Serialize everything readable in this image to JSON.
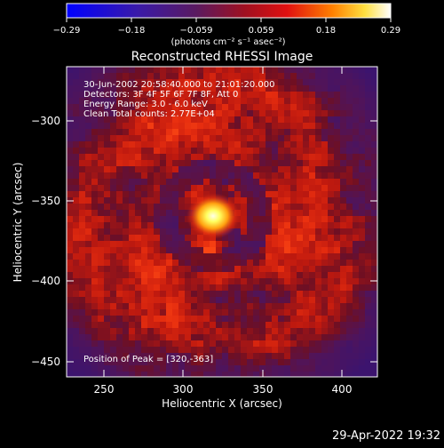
{
  "colorbar": {
    "ticks": [
      "−0.29",
      "−0.18",
      "−0.059",
      "0.059",
      "0.18",
      "0.29"
    ],
    "units": "(photons cm⁻² s⁻¹ asec⁻²)",
    "min": -0.29,
    "max": 0.29
  },
  "title": "Reconstructed RHESSI Image",
  "info_lines": [
    "30-Jun-2002 20:58:40.000 to 21:01:20.000",
    "Detectors: 3F 4F 5F 6F 7F 8F, Att 0",
    "Energy Range: 3.0 - 6.0 keV",
    "Clean     Total counts: 2.77E+04"
  ],
  "peak_text": "Position of Peak = [320,-363]",
  "peak": {
    "x": 320,
    "y": -363
  },
  "x_axis": {
    "label": "Heliocentric X (arcsec)",
    "ticks": [
      "250",
      "300",
      "350",
      "400"
    ],
    "range": [
      228,
      425
    ]
  },
  "y_axis": {
    "label": "Heliocentric Y (arcsec)",
    "ticks": [
      "−300",
      "−350",
      "−400",
      "−450"
    ],
    "range": [
      -460,
      -272
    ]
  },
  "timestamp": "29-Apr-2022 19:32",
  "colors": {
    "background": "#000000",
    "foreground": "#ffffff"
  }
}
